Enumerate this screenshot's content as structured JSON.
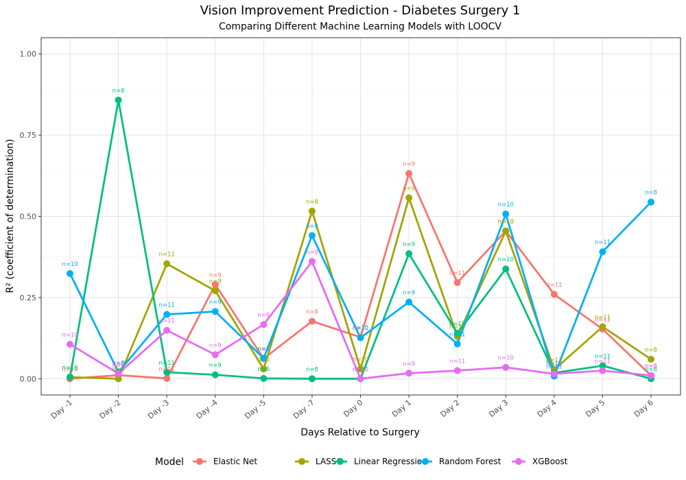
{
  "chart_data": {
    "type": "line",
    "title": "Vision Improvement Prediction - Diabetes Surgery 1",
    "subtitle": "Comparing Different Machine Learning Models with LOOCV",
    "xlabel": "Days Relative to Surgery",
    "ylabel": "R² (coefficient of determination)",
    "categories": [
      "Day -1",
      "Day -2",
      "Day -3",
      "Day -4",
      "Day -5",
      "Day -7",
      "Day 0",
      "Day 1",
      "Day 2",
      "Day 3",
      "Day 4",
      "Day 5",
      "Day 6"
    ],
    "ylim": [
      -0.05,
      1.05
    ],
    "yticks": [
      0.0,
      0.25,
      0.5,
      0.75,
      1.0
    ],
    "ytick_labels": [
      "0.00",
      "0.25",
      "0.50",
      "0.75",
      "1.00"
    ],
    "grid": true,
    "legend_position": "bottom",
    "legend_title": "Model",
    "series": [
      {
        "name": "Elastic Net",
        "color": "#F8766D",
        "values": [
          0.0,
          0.011,
          0.001,
          0.29,
          0.062,
          0.177,
          0.128,
          0.632,
          0.296,
          0.455,
          0.26,
          0.153,
          0.01
        ],
        "labels": [
          "n=10",
          "n=8",
          "n=11",
          "n=9",
          "n=6",
          "n=8",
          "n=10",
          "n=9",
          "n=11",
          "n=10",
          "n=11",
          "n=11",
          "n=8"
        ]
      },
      {
        "name": "LASSO",
        "color": "#A3A500",
        "values": [
          0.005,
          0.0,
          0.354,
          0.271,
          0.03,
          0.516,
          0.03,
          0.557,
          0.13,
          0.455,
          0.028,
          0.16,
          0.06
        ],
        "labels": [
          "n=10",
          "n=8",
          "n=11",
          "n=9",
          "n=6",
          "n=8",
          "n=10",
          "n=9",
          "n=11",
          "n=10",
          "n=11",
          "n=11",
          "n=8"
        ]
      },
      {
        "name": "Linear Regression",
        "color": "#00BF7D",
        "values": [
          0.005,
          0.858,
          0.02,
          0.012,
          0.001,
          0.0,
          0.0,
          0.385,
          0.14,
          0.338,
          0.018,
          0.04,
          0.0
        ],
        "labels": [
          "n=10",
          "n=8",
          "n=11",
          "n=9",
          "n=6",
          "n=8",
          "n=10",
          "n=9",
          "n=11",
          "n=10",
          "n=11",
          "n=11",
          "n=8"
        ]
      },
      {
        "name": "Random Forest",
        "color": "#00B0F6",
        "values": [
          0.324,
          0.02,
          0.198,
          0.207,
          0.063,
          0.441,
          0.126,
          0.236,
          0.107,
          0.507,
          0.008,
          0.391,
          0.544
        ],
        "labels": [
          "n=10",
          "n=8",
          "n=11",
          "n=9",
          "n=6",
          "n=8",
          "n=10",
          "n=9",
          "n=11",
          "n=10",
          "n=11",
          "n=11",
          "n=8"
        ]
      },
      {
        "name": "XGBoost",
        "color": "#E76BF3",
        "values": [
          0.106,
          0.016,
          0.149,
          0.074,
          0.167,
          0.361,
          0.0,
          0.017,
          0.025,
          0.035,
          0.015,
          0.025,
          0.01
        ],
        "labels": [
          "n=10",
          "n=8",
          "n=11",
          "n=9",
          "n=6",
          "n=8",
          "n=10",
          "n=9",
          "n=11",
          "n=10",
          "n=11",
          "n=11",
          "n=8"
        ]
      }
    ]
  }
}
